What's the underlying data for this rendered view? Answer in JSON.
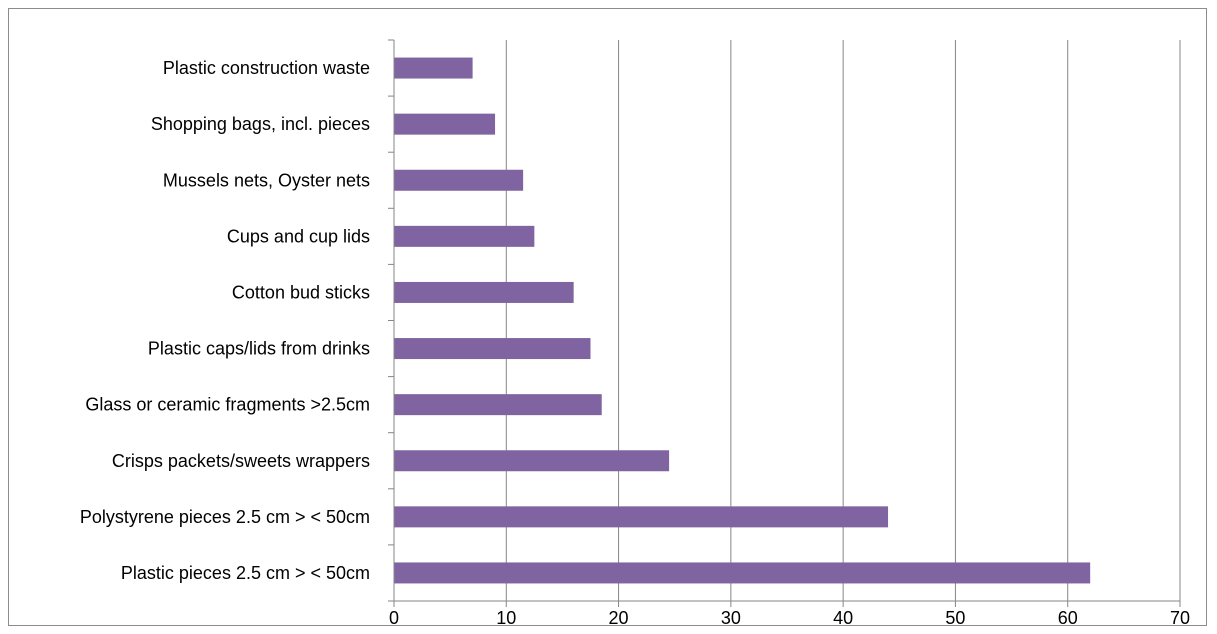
{
  "chart_data": {
    "type": "bar",
    "orientation": "horizontal",
    "categories": [
      "Plastic construction waste",
      "Shopping bags, incl. pieces",
      "Mussels nets, Oyster nets",
      "Cups and cup lids",
      "Cotton bud sticks",
      "Plastic caps/lids from drinks",
      "Glass or ceramic fragments >2.5cm",
      "Crisps packets/sweets wrappers",
      "Polystyrene pieces 2.5 cm > < 50cm",
      "Plastic pieces 2.5 cm > < 50cm"
    ],
    "values": [
      7,
      9,
      11.5,
      12.5,
      16,
      17.5,
      18.5,
      24.5,
      44,
      62
    ],
    "xlim": [
      0,
      70
    ],
    "x_ticks": [
      "0",
      "10",
      "20",
      "30",
      "40",
      "50",
      "60",
      "70"
    ],
    "title": "",
    "xlabel": "",
    "ylabel": "",
    "grid": "vertical",
    "legend": "none",
    "bar_color": "#8064a2",
    "grid_color": "#868686"
  }
}
